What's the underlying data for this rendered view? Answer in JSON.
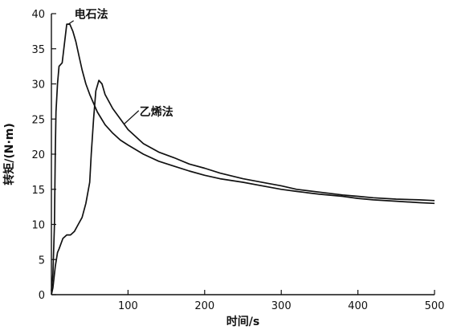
{
  "chart_data": {
    "type": "line",
    "xlabel": "时间/s",
    "ylabel": "转矩/(N·m)",
    "xlim": [
      0,
      500
    ],
    "ylim": [
      0,
      40
    ],
    "x_ticks": [
      100,
      200,
      300,
      400,
      500
    ],
    "x_tick_labels": [
      "100",
      "200",
      "300",
      "400",
      "500"
    ],
    "y_ticks": [
      0,
      5,
      10,
      15,
      20,
      25,
      30,
      35,
      40
    ],
    "y_tick_labels": [
      "0",
      "5",
      "10",
      "15",
      "20",
      "25",
      "30",
      "35",
      "40"
    ],
    "grid": false,
    "series": [
      {
        "name": "电石法",
        "x": [
          0,
          2,
          4,
          5,
          6,
          8,
          10,
          14,
          20,
          24,
          28,
          32,
          36,
          40,
          45,
          50,
          60,
          70,
          80,
          90,
          100,
          120,
          140,
          160,
          180,
          200,
          220,
          250,
          280,
          300,
          320,
          350,
          380,
          400,
          420,
          450,
          480,
          500
        ],
        "y": [
          0.5,
          3,
          10,
          20,
          26,
          30,
          32.5,
          33,
          38.5,
          38.5,
          37.5,
          36,
          34,
          32,
          30,
          28.5,
          26,
          24.2,
          23,
          22,
          21.3,
          20,
          19,
          18.3,
          17.6,
          17,
          16.5,
          16,
          15.4,
          15,
          14.7,
          14.3,
          14,
          13.7,
          13.5,
          13.3,
          13.1,
          13
        ]
      },
      {
        "name": "乙烯法",
        "x": [
          0,
          2,
          5,
          8,
          10,
          15,
          20,
          25,
          30,
          35,
          40,
          45,
          50,
          52,
          55,
          58,
          62,
          66,
          70,
          80,
          90,
          100,
          120,
          140,
          160,
          180,
          200,
          220,
          250,
          280,
          300,
          320,
          350,
          380,
          400,
          420,
          450,
          480,
          500
        ],
        "y": [
          0,
          1,
          4,
          6,
          6.5,
          8,
          8.5,
          8.5,
          9,
          10,
          11,
          13,
          16,
          20,
          25,
          29,
          30.5,
          30,
          28.5,
          26.5,
          25,
          23.5,
          21.5,
          20.3,
          19.5,
          18.6,
          18,
          17.3,
          16.5,
          15.9,
          15.5,
          15,
          14.6,
          14.2,
          14,
          13.8,
          13.6,
          13.5,
          13.4
        ]
      }
    ]
  }
}
